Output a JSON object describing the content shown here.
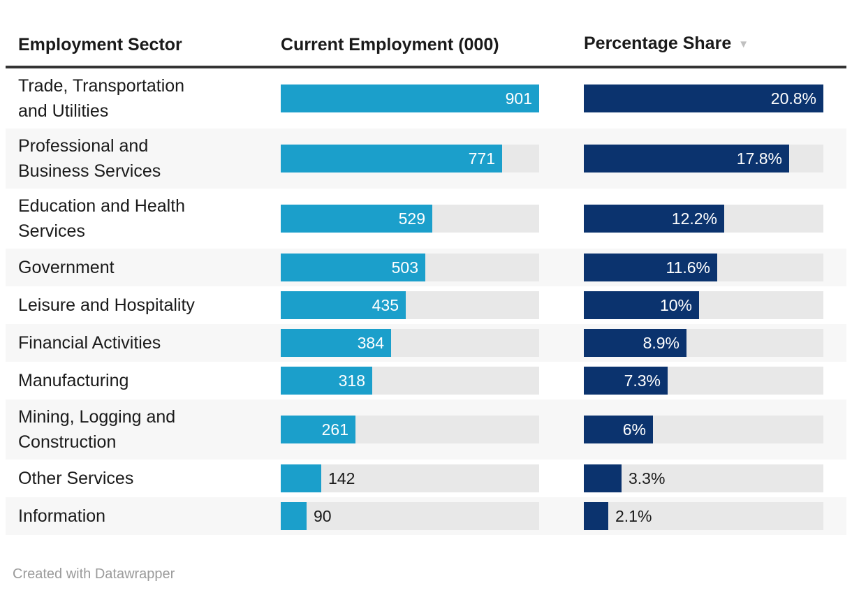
{
  "table": {
    "columns": [
      {
        "label": "Employment Sector"
      },
      {
        "label": "Current Employment (000)"
      },
      {
        "label": "Percentage Share",
        "sort_icon": "▼",
        "sorted": "descending"
      }
    ],
    "rows": [
      {
        "sector": "Trade, Transportation\nand Utilities",
        "employment": 901,
        "employment_label": "901",
        "share": 20.8,
        "share_label": "20.8%"
      },
      {
        "sector": "Professional and\nBusiness Services",
        "employment": 771,
        "employment_label": "771",
        "share": 17.8,
        "share_label": "17.8%"
      },
      {
        "sector": "Education and Health\nServices",
        "employment": 529,
        "employment_label": "529",
        "share": 12.2,
        "share_label": "12.2%"
      },
      {
        "sector": "Government",
        "employment": 503,
        "employment_label": "503",
        "share": 11.6,
        "share_label": "11.6%"
      },
      {
        "sector": "Leisure and Hospitality",
        "employment": 435,
        "employment_label": "435",
        "share": 10,
        "share_label": "10%"
      },
      {
        "sector": "Financial Activities",
        "employment": 384,
        "employment_label": "384",
        "share": 8.9,
        "share_label": "8.9%"
      },
      {
        "sector": "Manufacturing",
        "employment": 318,
        "employment_label": "318",
        "share": 7.3,
        "share_label": "7.3%"
      },
      {
        "sector": "Mining, Logging and\nConstruction",
        "employment": 261,
        "employment_label": "261",
        "share": 6,
        "share_label": "6%"
      },
      {
        "sector": "Other Services",
        "employment": 142,
        "employment_label": "142",
        "share": 3.3,
        "share_label": "3.3%"
      },
      {
        "sector": "Information",
        "employment": 90,
        "employment_label": "90",
        "share": 2.1,
        "share_label": "2.1%"
      }
    ]
  },
  "chart_data": {
    "type": "bar",
    "orientation": "horizontal",
    "title": "",
    "categories": [
      "Trade, Transportation and Utilities",
      "Professional and Business Services",
      "Education and Health Services",
      "Government",
      "Leisure and Hospitality",
      "Financial Activities",
      "Manufacturing",
      "Mining, Logging and Construction",
      "Other Services",
      "Information"
    ],
    "series": [
      {
        "name": "Current Employment (000)",
        "values": [
          901,
          771,
          529,
          503,
          435,
          384,
          318,
          261,
          142,
          90
        ],
        "color": "#1b9fcb",
        "xlim": [
          0,
          901
        ]
      },
      {
        "name": "Percentage Share",
        "values": [
          20.8,
          17.8,
          12.2,
          11.6,
          10,
          8.9,
          7.3,
          6,
          3.3,
          2.1
        ],
        "color": "#0b336e",
        "xlim": [
          0,
          20.8
        ],
        "unit": "%"
      }
    ],
    "sorted_by": "Percentage Share",
    "sort_direction": "descending",
    "legend_position": "none",
    "grid": false
  },
  "footer": {
    "credit": "Created with Datawrapper"
  },
  "colors": {
    "employment_bar": "#1b9fcb",
    "share_bar": "#0b336e",
    "bar_track": "#e8e8e8",
    "row_stripe": "#f7f7f7",
    "header_rule": "#333333",
    "text": "#1a1a1a",
    "muted_text": "#9b9b9b",
    "sort_arrow": "#c0c0c0"
  }
}
